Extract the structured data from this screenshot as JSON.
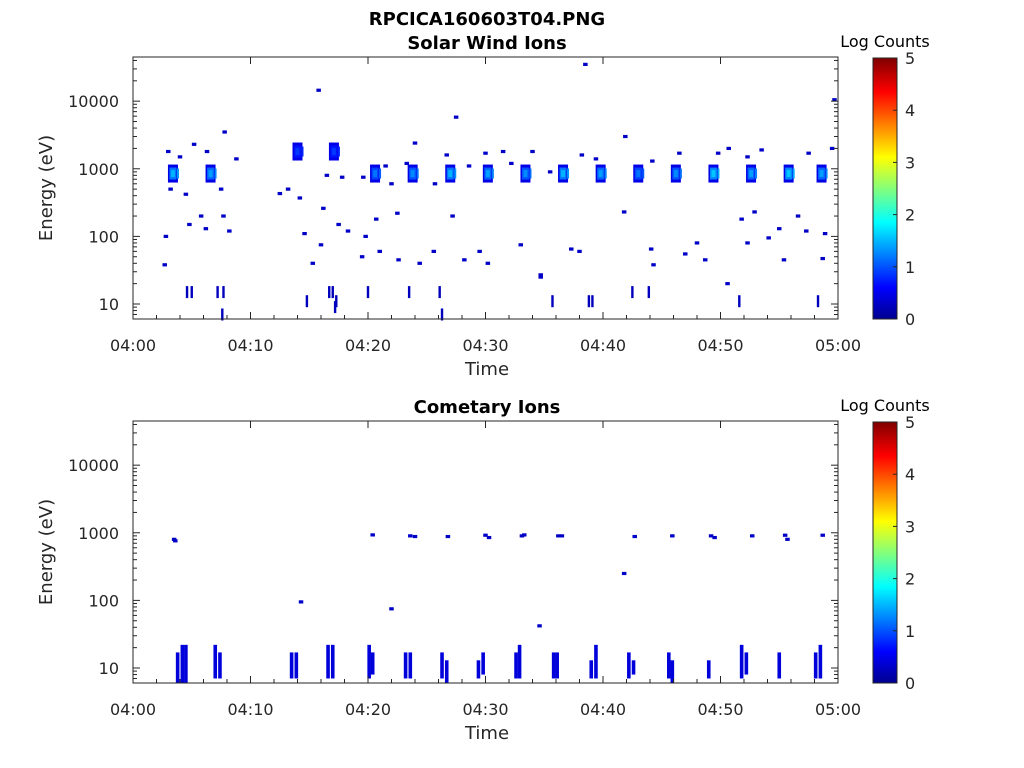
{
  "figure_title": "RPCICA160603T04.PNG",
  "chart_data": [
    {
      "type": "heatmap",
      "title": "Solar Wind Ions",
      "xlabel": "Time",
      "ylabel": "Energy (eV)",
      "x_ticks": [
        "04:00",
        "04:10",
        "04:20",
        "04:30",
        "04:40",
        "04:50",
        "05:00"
      ],
      "y_ticks": [
        "10",
        "100",
        "1000",
        "10000"
      ],
      "y_scale": "log",
      "xlim_minutes": [
        0,
        60
      ],
      "ylim": [
        6,
        45000
      ],
      "colorbar": {
        "label": "Log Counts",
        "ticks": [
          "0",
          "1",
          "2",
          "3",
          "4",
          "5"
        ],
        "range": [
          0,
          5
        ]
      },
      "bright_bursts": [
        {
          "t": 3.4,
          "e": 850,
          "v": 1.5
        },
        {
          "t": 6.6,
          "e": 850,
          "v": 1.4
        },
        {
          "t": 20.6,
          "e": 850,
          "v": 1.2
        },
        {
          "t": 23.8,
          "e": 850,
          "v": 1.3
        },
        {
          "t": 27.0,
          "e": 850,
          "v": 1.5
        },
        {
          "t": 30.2,
          "e": 850,
          "v": 1.4
        },
        {
          "t": 33.4,
          "e": 850,
          "v": 1.3
        },
        {
          "t": 36.6,
          "e": 850,
          "v": 1.5
        },
        {
          "t": 39.8,
          "e": 850,
          "v": 1.4
        },
        {
          "t": 43.0,
          "e": 850,
          "v": 1.2
        },
        {
          "t": 46.2,
          "e": 850,
          "v": 1.3
        },
        {
          "t": 49.4,
          "e": 850,
          "v": 1.6
        },
        {
          "t": 52.6,
          "e": 850,
          "v": 1.4
        },
        {
          "t": 55.8,
          "e": 850,
          "v": 1.6
        },
        {
          "t": 58.6,
          "e": 850,
          "v": 1.4
        },
        {
          "t": 14.0,
          "e": 1800,
          "v": 0.9
        },
        {
          "t": 17.1,
          "e": 1800,
          "v": 0.9
        }
      ],
      "sparse_points": [
        [
          3.0,
          1800
        ],
        [
          4.0,
          1500
        ],
        [
          5.2,
          2300
        ],
        [
          6.3,
          1800
        ],
        [
          7.8,
          3500
        ],
        [
          8.8,
          1400
        ],
        [
          3.2,
          500
        ],
        [
          4.5,
          420
        ],
        [
          7.5,
          500
        ],
        [
          2.8,
          100
        ],
        [
          4.8,
          150
        ],
        [
          5.8,
          200
        ],
        [
          6.2,
          130
        ],
        [
          7.7,
          200
        ],
        [
          8.2,
          120
        ],
        [
          2.7,
          38
        ],
        [
          12.5,
          430
        ],
        [
          13.2,
          500
        ],
        [
          14.2,
          370
        ],
        [
          16.5,
          800
        ],
        [
          17.8,
          750
        ],
        [
          19.6,
          750
        ],
        [
          21.5,
          1100
        ],
        [
          22.0,
          600
        ],
        [
          23.3,
          1200
        ],
        [
          25.7,
          600
        ],
        [
          26.7,
          1600
        ],
        [
          28.6,
          1100
        ],
        [
          30.0,
          1700
        ],
        [
          31.5,
          1800
        ],
        [
          32.2,
          1200
        ],
        [
          34.0,
          1800
        ],
        [
          35.5,
          900
        ],
        [
          38.2,
          1600
        ],
        [
          39.4,
          1400
        ],
        [
          44.2,
          1300
        ],
        [
          46.5,
          1700
        ],
        [
          49.8,
          1700
        ],
        [
          50.7,
          2000
        ],
        [
          52.3,
          1500
        ],
        [
          53.5,
          1900
        ],
        [
          57.5,
          1700
        ],
        [
          59.5,
          2000
        ],
        [
          27.5,
          5800
        ],
        [
          24.0,
          2400
        ],
        [
          41.9,
          3000
        ],
        [
          15.8,
          14500
        ],
        [
          38.5,
          35000
        ],
        [
          59.7,
          10500
        ],
        [
          14.6,
          110
        ],
        [
          16.0,
          75
        ],
        [
          17.5,
          150
        ],
        [
          18.3,
          120
        ],
        [
          19.8,
          100
        ],
        [
          20.7,
          180
        ],
        [
          21.0,
          60
        ],
        [
          22.6,
          45
        ],
        [
          24.4,
          40
        ],
        [
          25.6,
          60
        ],
        [
          27.2,
          200
        ],
        [
          28.2,
          45
        ],
        [
          29.5,
          60
        ],
        [
          30.2,
          40
        ],
        [
          33.0,
          75
        ],
        [
          34.7,
          25
        ],
        [
          37.3,
          65
        ],
        [
          38.0,
          60
        ],
        [
          41.8,
          230
        ],
        [
          44.1,
          65
        ],
        [
          44.3,
          38
        ],
        [
          47.0,
          55
        ],
        [
          48.0,
          80
        ],
        [
          48.7,
          45
        ],
        [
          50.6,
          20
        ],
        [
          51.8,
          180
        ],
        [
          52.3,
          80
        ],
        [
          52.9,
          230
        ],
        [
          54.1,
          95
        ],
        [
          55.0,
          130
        ],
        [
          55.4,
          45
        ],
        [
          56.6,
          200
        ],
        [
          57.3,
          120
        ],
        [
          58.7,
          47
        ],
        [
          58.9,
          110
        ],
        [
          22.5,
          220
        ],
        [
          15.3,
          40
        ],
        [
          16.2,
          260
        ],
        [
          19.5,
          50
        ],
        [
          34.7,
          27
        ]
      ],
      "low_energy_bars": [
        [
          4.6,
          15
        ],
        [
          5.0,
          15
        ],
        [
          7.2,
          15
        ],
        [
          7.7,
          15
        ],
        [
          7.6,
          7
        ],
        [
          14.8,
          11
        ],
        [
          16.7,
          15
        ],
        [
          17.0,
          15
        ],
        [
          17.2,
          9
        ],
        [
          17.3,
          11
        ],
        [
          20.0,
          15
        ],
        [
          23.5,
          15
        ],
        [
          26.1,
          15
        ],
        [
          26.3,
          7
        ],
        [
          35.7,
          11
        ],
        [
          38.8,
          11
        ],
        [
          39.1,
          11
        ],
        [
          42.5,
          15
        ],
        [
          43.9,
          15
        ],
        [
          51.6,
          11
        ],
        [
          58.3,
          11
        ]
      ]
    },
    {
      "type": "heatmap",
      "title": "Cometary Ions",
      "xlabel": "Time",
      "ylabel": "Energy (eV)",
      "x_ticks": [
        "04:00",
        "04:10",
        "04:20",
        "04:30",
        "04:40",
        "04:50",
        "05:00"
      ],
      "y_ticks": [
        "10",
        "100",
        "1000",
        "10000"
      ],
      "y_scale": "log",
      "xlim_minutes": [
        0,
        60
      ],
      "ylim": [
        6,
        45000
      ],
      "colorbar": {
        "label": "Log Counts",
        "ticks": [
          "0",
          "1",
          "2",
          "3",
          "4",
          "5"
        ],
        "range": [
          0,
          5
        ]
      },
      "sparse_points": [
        [
          3.5,
          800
        ],
        [
          3.6,
          760
        ],
        [
          20.4,
          930
        ],
        [
          23.6,
          900
        ],
        [
          24.0,
          880
        ],
        [
          26.8,
          880
        ],
        [
          30.0,
          920
        ],
        [
          30.3,
          850
        ],
        [
          33.1,
          900
        ],
        [
          33.3,
          930
        ],
        [
          36.2,
          900
        ],
        [
          36.5,
          900
        ],
        [
          42.7,
          880
        ],
        [
          45.9,
          900
        ],
        [
          49.2,
          900
        ],
        [
          49.5,
          850
        ],
        [
          52.7,
          900
        ],
        [
          55.5,
          920
        ],
        [
          55.7,
          800
        ],
        [
          58.7,
          920
        ],
        [
          14.3,
          95
        ],
        [
          22.0,
          75
        ],
        [
          34.6,
          42
        ],
        [
          41.8,
          250
        ]
      ],
      "low_energy_columns": [
        [
          3.8,
          6,
          17
        ],
        [
          4.2,
          6,
          22
        ],
        [
          4.5,
          6,
          22
        ],
        [
          7.0,
          7,
          22
        ],
        [
          7.4,
          7,
          17
        ],
        [
          13.5,
          7,
          17
        ],
        [
          13.9,
          7,
          17
        ],
        [
          16.6,
          7,
          22
        ],
        [
          17.0,
          7,
          22
        ],
        [
          20.1,
          7,
          22
        ],
        [
          20.4,
          8,
          17
        ],
        [
          23.2,
          7,
          17
        ],
        [
          23.6,
          7,
          17
        ],
        [
          26.3,
          7,
          17
        ],
        [
          26.7,
          6,
          13
        ],
        [
          29.4,
          7,
          13
        ],
        [
          29.8,
          8,
          17
        ],
        [
          32.6,
          7,
          17
        ],
        [
          32.9,
          7,
          22
        ],
        [
          35.8,
          7,
          17
        ],
        [
          36.1,
          7,
          17
        ],
        [
          39.0,
          7,
          13
        ],
        [
          39.4,
          7,
          22
        ],
        [
          42.2,
          7,
          17
        ],
        [
          42.6,
          8,
          13
        ],
        [
          45.6,
          7,
          17
        ],
        [
          45.9,
          6,
          13
        ],
        [
          49.0,
          7,
          13
        ],
        [
          51.8,
          7,
          22
        ],
        [
          52.2,
          8,
          17
        ],
        [
          55.0,
          7,
          17
        ],
        [
          58.1,
          7,
          17
        ],
        [
          58.5,
          7,
          22
        ]
      ]
    }
  ]
}
